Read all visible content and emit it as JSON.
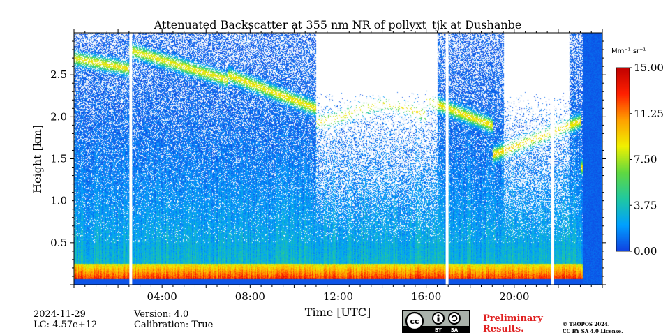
{
  "chart_data": {
    "type": "heatmap",
    "title": "Attenuated Backscatter at 355 nm NR of pollyxt_tjk at Dushanbe",
    "xlabel": "Time [UTC]",
    "ylabel": "Height [km]",
    "x_range_hours": [
      0,
      24
    ],
    "y_range_km": [
      0,
      3.0
    ],
    "x_ticks": [
      {
        "value": 4,
        "label": "04:00"
      },
      {
        "value": 8,
        "label": "08:00"
      },
      {
        "value": 12,
        "label": "12:00"
      },
      {
        "value": 16,
        "label": "16:00"
      },
      {
        "value": 20,
        "label": "20:00"
      }
    ],
    "y_ticks": [
      {
        "value": 0.5,
        "label": "0.5"
      },
      {
        "value": 1.0,
        "label": "1.0"
      },
      {
        "value": 1.5,
        "label": "1.5"
      },
      {
        "value": 2.0,
        "label": "2.0"
      },
      {
        "value": 2.5,
        "label": "2.5"
      }
    ],
    "colorbar": {
      "label": "Mm⁻¹ sr⁻¹",
      "range": [
        0,
        15
      ],
      "ticks": [
        {
          "value": 0,
          "label": "0.00"
        },
        {
          "value": 3.75,
          "label": "3.75"
        },
        {
          "value": 7.5,
          "label": "7.50"
        },
        {
          "value": 11.25,
          "label": "11.25"
        },
        {
          "value": 15,
          "label": "15.00"
        }
      ],
      "colors": [
        "#1040e0",
        "#00a0ff",
        "#20c8a0",
        "#60d840",
        "#f0f000",
        "#ffa000",
        "#ff2000",
        "#c00000"
      ]
    },
    "data_gaps_hours": [
      2.58,
      16.95,
      21.75
    ],
    "depolarization_shutter_period_hours": [
      23.1,
      24.0
    ]
  },
  "footer": {
    "date": "2024-11-29",
    "lc": "LC: 4.57e+12",
    "version": "Version: 4.0",
    "calibration": "Calibration: True",
    "preliminary_line1": "Preliminary",
    "preliminary_line2": "Results.",
    "copyright_line1": "© TROPOS 2024.",
    "copyright_line2": "CC BY SA 4.0 License.",
    "cc_by": "BY",
    "cc_sa": "SA",
    "cc_cc": "cc"
  }
}
